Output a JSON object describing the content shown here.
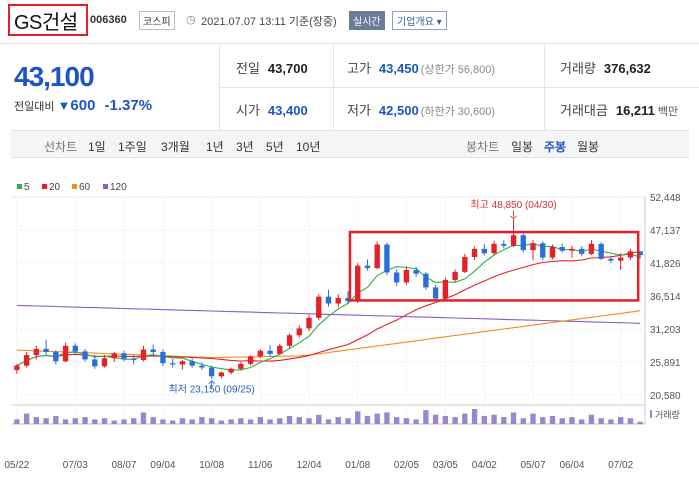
{
  "header": {
    "name": "GS건설",
    "code": "006360",
    "market": "코스피",
    "clock_icon": "◷",
    "datetime": "2021.07.07 13:11 기준(장중)",
    "realtime": "실시간",
    "company": "기업개요 ▾"
  },
  "quote": {
    "price": "43,100",
    "change_label": "전일대비",
    "change_arrow": "▼",
    "change_value": "600",
    "change_pct": "-1.37%",
    "prev_label": "전일",
    "prev": "43,700",
    "high_label": "고가",
    "high": "43,450",
    "upper_limit": "(상한가 56,800)",
    "volume_label": "거래량",
    "volume": "376,632",
    "open_label": "시가",
    "open": "43,400",
    "low_label": "저가",
    "low": "42,500",
    "lower_limit": "(하한가 30,600)",
    "amount_label": "거래대금",
    "amount": "16,211",
    "amount_unit": "백만"
  },
  "period_bar": {
    "label": "선차트",
    "periods": [
      "1일",
      "1주일",
      "3개월",
      "1년",
      "3년",
      "5년",
      "10년"
    ],
    "candle_label": "봉차트",
    "candles": [
      "일봉",
      "주봉",
      "월봉"
    ],
    "active_candle": "주봉"
  },
  "chart_data": {
    "type": "candlestick",
    "legend": [
      {
        "name": "5",
        "color": "#2fb14a"
      },
      {
        "name": "20",
        "color": "#e5202a"
      },
      {
        "name": "60",
        "color": "#f28b1e"
      },
      {
        "name": "120",
        "color": "#8e5cc8"
      }
    ],
    "y_ticks": [
      "52,448",
      "47,137",
      "41,826",
      "36,514",
      "31,203",
      "25,891",
      "20,580"
    ],
    "ylim": [
      20580,
      52448
    ],
    "x_ticks": [
      "05/22",
      "07/03",
      "08/07",
      "09/04",
      "10/08",
      "11/06",
      "12/04",
      "01/08",
      "02/05",
      "03/05",
      "04/02",
      "05/07",
      "06/04",
      "07/02"
    ],
    "high_annotation": "최고 48,850 (04/30)",
    "low_annotation": "최저 23,150 (09/25)",
    "volume_label": "거래량",
    "up_color": "#e5202a",
    "down_color": "#2a6fd6",
    "highlight_color": "#e5202a",
    "candles": [
      {
        "o": 24600,
        "h": 25600,
        "l": 24000,
        "c": 25300
      },
      {
        "o": 25300,
        "h": 27500,
        "l": 25000,
        "c": 27000
      },
      {
        "o": 27000,
        "h": 28500,
        "l": 26300,
        "c": 28000
      },
      {
        "o": 28000,
        "h": 29500,
        "l": 27000,
        "c": 27500
      },
      {
        "o": 27500,
        "h": 27800,
        "l": 25500,
        "c": 26000
      },
      {
        "o": 26000,
        "h": 29000,
        "l": 25800,
        "c": 28500
      },
      {
        "o": 28500,
        "h": 28900,
        "l": 27200,
        "c": 27600
      },
      {
        "o": 27600,
        "h": 28000,
        "l": 26000,
        "c": 26300
      },
      {
        "o": 26300,
        "h": 27000,
        "l": 24800,
        "c": 25200
      },
      {
        "o": 25200,
        "h": 27000,
        "l": 25000,
        "c": 26500
      },
      {
        "o": 26500,
        "h": 27500,
        "l": 25900,
        "c": 27300
      },
      {
        "o": 27300,
        "h": 27700,
        "l": 26000,
        "c": 26400
      },
      {
        "o": 26400,
        "h": 27000,
        "l": 25500,
        "c": 26200
      },
      {
        "o": 26200,
        "h": 28500,
        "l": 26000,
        "c": 27900
      },
      {
        "o": 27900,
        "h": 28700,
        "l": 27100,
        "c": 27500
      },
      {
        "o": 27500,
        "h": 27900,
        "l": 25300,
        "c": 25700
      },
      {
        "o": 25700,
        "h": 26400,
        "l": 25000,
        "c": 25500
      },
      {
        "o": 25500,
        "h": 26200,
        "l": 24700,
        "c": 26000
      },
      {
        "o": 26000,
        "h": 26500,
        "l": 25000,
        "c": 25300
      },
      {
        "o": 25300,
        "h": 25800,
        "l": 24600,
        "c": 25000
      },
      {
        "o": 25000,
        "h": 25300,
        "l": 23150,
        "c": 23600
      },
      {
        "o": 23600,
        "h": 24400,
        "l": 23300,
        "c": 24200
      },
      {
        "o": 24200,
        "h": 25000,
        "l": 23900,
        "c": 24800
      },
      {
        "o": 24800,
        "h": 25900,
        "l": 24500,
        "c": 25600
      },
      {
        "o": 25600,
        "h": 27000,
        "l": 25300,
        "c": 26800
      },
      {
        "o": 26800,
        "h": 28000,
        "l": 26500,
        "c": 27700
      },
      {
        "o": 27700,
        "h": 28600,
        "l": 26700,
        "c": 27200
      },
      {
        "o": 27200,
        "h": 28800,
        "l": 27000,
        "c": 28500
      },
      {
        "o": 28500,
        "h": 30500,
        "l": 28200,
        "c": 30200
      },
      {
        "o": 30200,
        "h": 31800,
        "l": 29800,
        "c": 31300
      },
      {
        "o": 31300,
        "h": 33500,
        "l": 30800,
        "c": 33000
      },
      {
        "o": 33000,
        "h": 36800,
        "l": 32600,
        "c": 36400
      },
      {
        "o": 36400,
        "h": 37500,
        "l": 34800,
        "c": 35300
      },
      {
        "o": 35300,
        "h": 36800,
        "l": 34700,
        "c": 36200
      },
      {
        "o": 36200,
        "h": 37300,
        "l": 35300,
        "c": 35700
      },
      {
        "o": 35700,
        "h": 41800,
        "l": 35400,
        "c": 41400
      },
      {
        "o": 41400,
        "h": 42400,
        "l": 40600,
        "c": 41000
      },
      {
        "o": 41000,
        "h": 45300,
        "l": 40800,
        "c": 44800
      },
      {
        "o": 44800,
        "h": 45100,
        "l": 39900,
        "c": 40300
      },
      {
        "o": 40300,
        "h": 40800,
        "l": 38100,
        "c": 38700
      },
      {
        "o": 38700,
        "h": 41300,
        "l": 38300,
        "c": 40700
      },
      {
        "o": 40700,
        "h": 41200,
        "l": 39600,
        "c": 40100
      },
      {
        "o": 40100,
        "h": 40400,
        "l": 37500,
        "c": 37900
      },
      {
        "o": 37900,
        "h": 38300,
        "l": 35700,
        "c": 36100
      },
      {
        "o": 36100,
        "h": 39500,
        "l": 35900,
        "c": 39100
      },
      {
        "o": 39100,
        "h": 40800,
        "l": 38800,
        "c": 40400
      },
      {
        "o": 40400,
        "h": 43300,
        "l": 40200,
        "c": 42800
      },
      {
        "o": 42800,
        "h": 44500,
        "l": 42300,
        "c": 44100
      },
      {
        "o": 44100,
        "h": 44900,
        "l": 43000,
        "c": 43400
      },
      {
        "o": 43400,
        "h": 45400,
        "l": 43100,
        "c": 44900
      },
      {
        "o": 44900,
        "h": 45500,
        "l": 44200,
        "c": 44600
      },
      {
        "o": 44600,
        "h": 48850,
        "l": 44400,
        "c": 46300
      },
      {
        "o": 46300,
        "h": 46600,
        "l": 43500,
        "c": 43900
      },
      {
        "o": 43900,
        "h": 45500,
        "l": 42300,
        "c": 45000
      },
      {
        "o": 45000,
        "h": 45300,
        "l": 42300,
        "c": 42700
      },
      {
        "o": 42700,
        "h": 44800,
        "l": 42400,
        "c": 44400
      },
      {
        "o": 44400,
        "h": 45000,
        "l": 43500,
        "c": 43800
      },
      {
        "o": 43800,
        "h": 44600,
        "l": 42700,
        "c": 44100
      },
      {
        "o": 44100,
        "h": 44500,
        "l": 42900,
        "c": 43300
      },
      {
        "o": 43300,
        "h": 45500,
        "l": 43100,
        "c": 44900
      },
      {
        "o": 44900,
        "h": 45200,
        "l": 42300,
        "c": 42500
      },
      {
        "o": 42500,
        "h": 43000,
        "l": 41800,
        "c": 42200
      },
      {
        "o": 42200,
        "h": 43400,
        "l": 40700,
        "c": 42700
      },
      {
        "o": 42700,
        "h": 44100,
        "l": 42300,
        "c": 43700
      },
      {
        "o": 43700,
        "h": 43700,
        "l": 42500,
        "c": 43100
      }
    ],
    "volumes": [
      4,
      9,
      6,
      5,
      7,
      4,
      5,
      6,
      4,
      5,
      3,
      4,
      5,
      10,
      6,
      4,
      3,
      5,
      4,
      6,
      5,
      3,
      4,
      5,
      4,
      6,
      4,
      5,
      7,
      6,
      5,
      8,
      4,
      6,
      5,
      11,
      7,
      9,
      10,
      6,
      5,
      4,
      12,
      8,
      7,
      6,
      9,
      13,
      7,
      8,
      6,
      10,
      5,
      9,
      6,
      7,
      5,
      6,
      4,
      8,
      5,
      4,
      6,
      5,
      2
    ]
  }
}
